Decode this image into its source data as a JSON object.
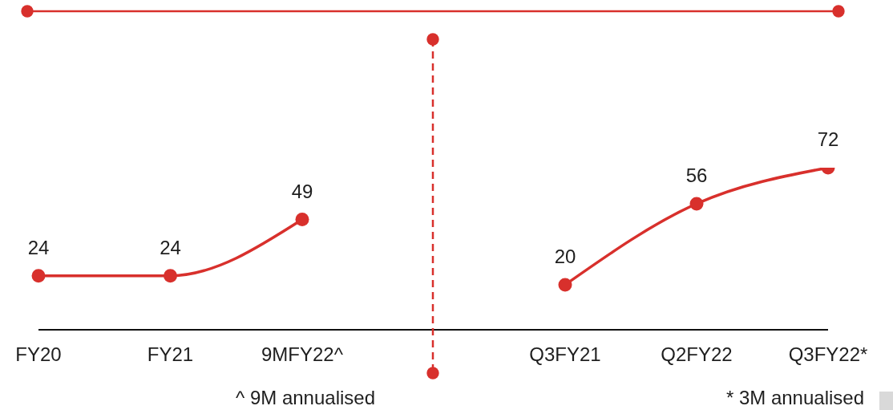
{
  "chart_data": [
    {
      "type": "line",
      "categories": [
        "FY20",
        "FY21",
        "9MFY22^"
      ],
      "values": [
        24,
        24,
        49
      ],
      "color": "#d8302c",
      "marker": "circle",
      "data_labels": true,
      "tick_labels": "x",
      "annotations": [
        "^ 9M annualised"
      ]
    },
    {
      "type": "line",
      "categories": [
        "Q3FY21",
        "Q2FY22",
        "Q3FY22*"
      ],
      "values": [
        20,
        56,
        72
      ],
      "color": "#d8302c",
      "marker": "circle",
      "data_labels": true,
      "tick_labels": "x",
      "annotations": [
        "* 3M annualised"
      ]
    }
  ]
}
